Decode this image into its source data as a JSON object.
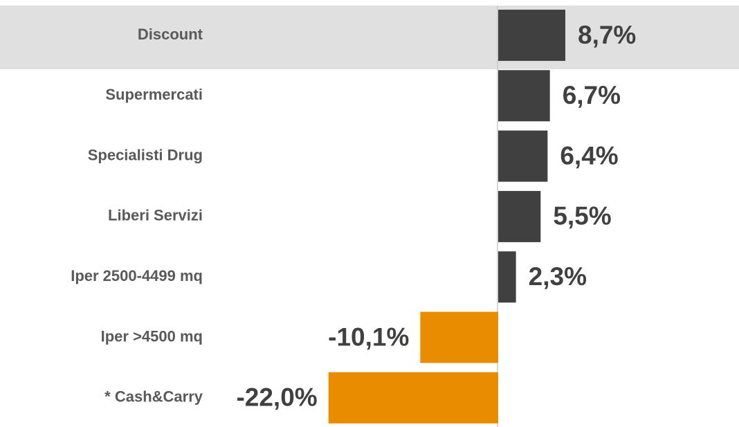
{
  "chart_data": {
    "type": "bar",
    "orientation": "horizontal",
    "categories": [
      "Discount",
      "Supermercati",
      "Specialisti Drug",
      "Liberi Servizi",
      "Iper 2500-4499 mq",
      "Iper >4500 mq",
      "* Cash&Carry"
    ],
    "values": [
      8.7,
      6.7,
      6.4,
      5.5,
      2.3,
      -10.1,
      -22.0
    ],
    "value_labels": [
      "8,7%",
      "6,7%",
      "6,4%",
      "5,5%",
      "2,3%",
      "-10,1%",
      "-22,0%"
    ],
    "colors": [
      "#404040",
      "#404040",
      "#404040",
      "#404040",
      "#404040",
      "#ea8c00",
      "#ea8c00"
    ]
  }
}
